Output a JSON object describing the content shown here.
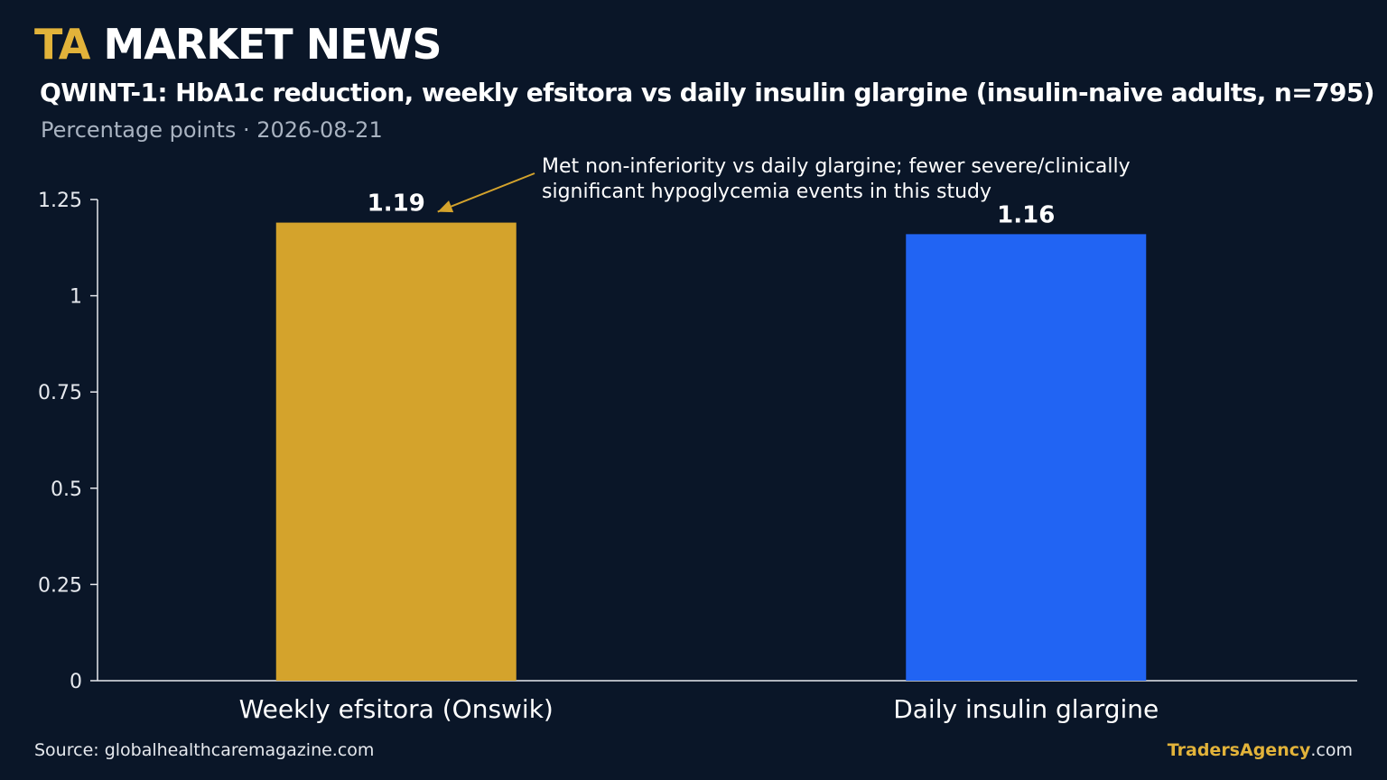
{
  "brand": {
    "accent": "TA",
    "rest": "MARKET NEWS"
  },
  "header": {
    "title": "QWINT-1: HbA1c reduction, weekly efsitora vs daily insulin glargine (insulin-naive adults, n=795)",
    "subtitle": "Percentage points · 2026-08-21"
  },
  "chart_data": {
    "type": "bar",
    "categories": [
      "Weekly efsitora (Onswik)",
      "Daily insulin glargine"
    ],
    "values": [
      1.19,
      1.16
    ],
    "value_labels": [
      "1.19",
      "1.16"
    ],
    "colors": [
      "#d4a32c",
      "#2164f3"
    ],
    "ylim": [
      0,
      1.25
    ],
    "yticks": [
      0,
      0.25,
      0.5,
      0.75,
      1,
      1.25
    ],
    "ytick_labels": [
      "0",
      "0.25",
      "0.5",
      "0.75",
      "1",
      "1.25"
    ],
    "grid": false,
    "annotation": {
      "lines": [
        "Met non-inferiority vs daily glargine; fewer severe/clinically",
        "significant hypoglycemia events in this study"
      ],
      "target_category": "Weekly efsitora (Onswik)",
      "arrow_color": "#d4a32c"
    }
  },
  "footer": {
    "source": "Source: globalhealthcaremagazine.com",
    "credit_accent": "TradersAgency",
    "credit_rest": ".com"
  },
  "colors": {
    "background": "#0a1628",
    "accent": "#e2b33a"
  }
}
